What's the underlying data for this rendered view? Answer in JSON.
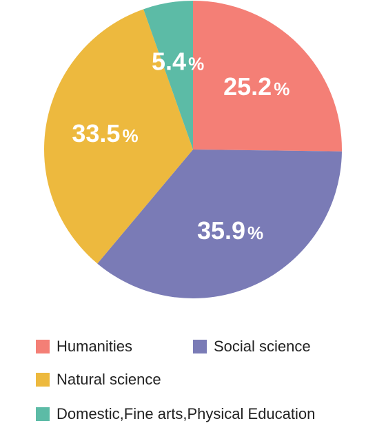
{
  "chart_data": {
    "type": "pie",
    "start_angle_deg": 0,
    "direction": "clockwise",
    "slices": [
      {
        "name": "Humanities",
        "value": 25.2,
        "label": "25.2",
        "unit": "%",
        "color": "#F47F76"
      },
      {
        "name": "Social science",
        "value": 35.9,
        "label": "35.9",
        "unit": "%",
        "color": "#7A7BB6"
      },
      {
        "name": "Natural science",
        "value": 33.5,
        "label": "33.5",
        "unit": "%",
        "color": "#EDB93E"
      },
      {
        "name": "Domestic,Fine arts,Physical Education",
        "value": 5.4,
        "label": "5.4",
        "unit": "%",
        "color": "#5CBBA6"
      }
    ],
    "legend_position": "bottom"
  }
}
